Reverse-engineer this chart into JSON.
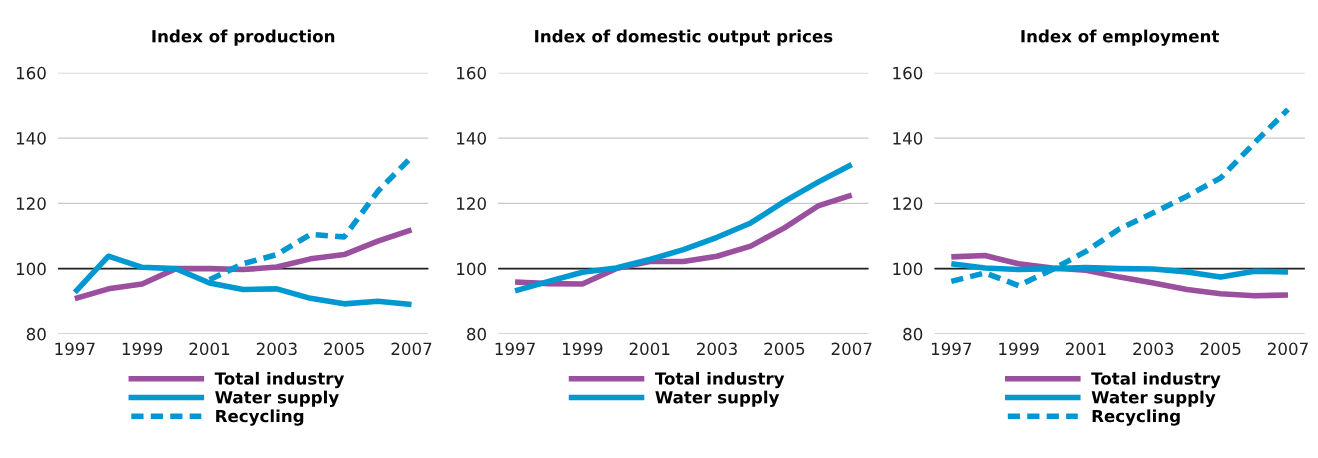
{
  "chart_data": [
    {
      "type": "line",
      "title": "Index of production",
      "ref_lines": [
        {
          "axis": "y",
          "value": 100,
          "color": "#222222"
        }
      ],
      "x": [
        1997,
        1998,
        1999,
        2000,
        2001,
        2002,
        2003,
        2004,
        2005,
        2006,
        2007
      ],
      "xlim": [
        1996.5,
        2007.5
      ],
      "xticks": [
        1997,
        1999,
        2001,
        2003,
        2005,
        2007
      ],
      "ylim": [
        80,
        160
      ],
      "yticks": [
        80,
        100,
        120,
        140,
        160
      ],
      "grid": "y",
      "legend": "bottom",
      "series": [
        {
          "name": "Total industry",
          "color": "#9b4f9f",
          "values": [
            90.8,
            93.8,
            95.3,
            100,
            100,
            99.7,
            100.5,
            103,
            104.3,
            108.4,
            111.9
          ]
        },
        {
          "name": "Water supply",
          "color": "#0098d0",
          "values": [
            92.7,
            103.8,
            100.4,
            100,
            95.6,
            93.6,
            93.8,
            90.9,
            89.2,
            90,
            89
          ]
        },
        {
          "name": "Recycling",
          "color": "#0098d0",
          "line_style": "dashed",
          "values": [
            null,
            null,
            null,
            null,
            96.6,
            101.5,
            104.3,
            110.5,
            109.7,
            123.7,
            134.2
          ]
        }
      ]
    },
    {
      "type": "line",
      "title": "Index of domestic output prices",
      "ref_lines": [
        {
          "axis": "y",
          "value": 100,
          "color": "#222222"
        }
      ],
      "x": [
        1997,
        1998,
        1999,
        2000,
        2001,
        2002,
        2003,
        2004,
        2005,
        2006,
        2007
      ],
      "xlim": [
        1996.5,
        2007.5
      ],
      "xticks": [
        1997,
        1999,
        2001,
        2003,
        2005,
        2007
      ],
      "ylim": [
        80,
        160
      ],
      "yticks": [
        80,
        100,
        120,
        140,
        160
      ],
      "grid": "y",
      "legend": "bottom",
      "series": [
        {
          "name": "Total industry",
          "color": "#9b4f9f",
          "values": [
            95.9,
            95.4,
            95.3,
            100,
            102.2,
            102.2,
            103.8,
            106.9,
            112.5,
            119.2,
            122.5
          ]
        },
        {
          "name": "Water supply",
          "color": "#0098d0",
          "values": [
            93.2,
            96.1,
            98.9,
            100.2,
            102.8,
            105.8,
            109.6,
            114,
            120.6,
            126.5,
            131.9
          ]
        }
      ]
    },
    {
      "type": "line",
      "title": "Index of employment",
      "ref_lines": [
        {
          "axis": "y",
          "value": 100,
          "color": "#222222"
        }
      ],
      "x": [
        1997,
        1998,
        1999,
        2000,
        2001,
        2002,
        2003,
        2004,
        2005,
        2006,
        2007
      ],
      "xlim": [
        1996.5,
        2007.5
      ],
      "xticks": [
        1997,
        1999,
        2001,
        2003,
        2005,
        2007
      ],
      "ylim": [
        80,
        160
      ],
      "yticks": [
        80,
        100,
        120,
        140,
        160
      ],
      "grid": "y",
      "legend": "bottom",
      "series": [
        {
          "name": "Total industry",
          "color": "#9b4f9f",
          "values": [
            103.6,
            104,
            101.5,
            100.2,
            99.5,
            97.4,
            95.6,
            93.6,
            92.3,
            91.7,
            91.9
          ]
        },
        {
          "name": "Water supply",
          "color": "#0098d0",
          "values": [
            101.5,
            100.2,
            99.7,
            100,
            100.3,
            100,
            99.9,
            99,
            97.4,
            99.2,
            99
          ]
        },
        {
          "name": "Recycling",
          "color": "#0098d0",
          "line_style": "dashed",
          "values": [
            96.1,
            98.7,
            94.8,
            99.7,
            105.3,
            112.2,
            117.1,
            122.2,
            127.8,
            138.5,
            148.8
          ]
        }
      ]
    }
  ]
}
